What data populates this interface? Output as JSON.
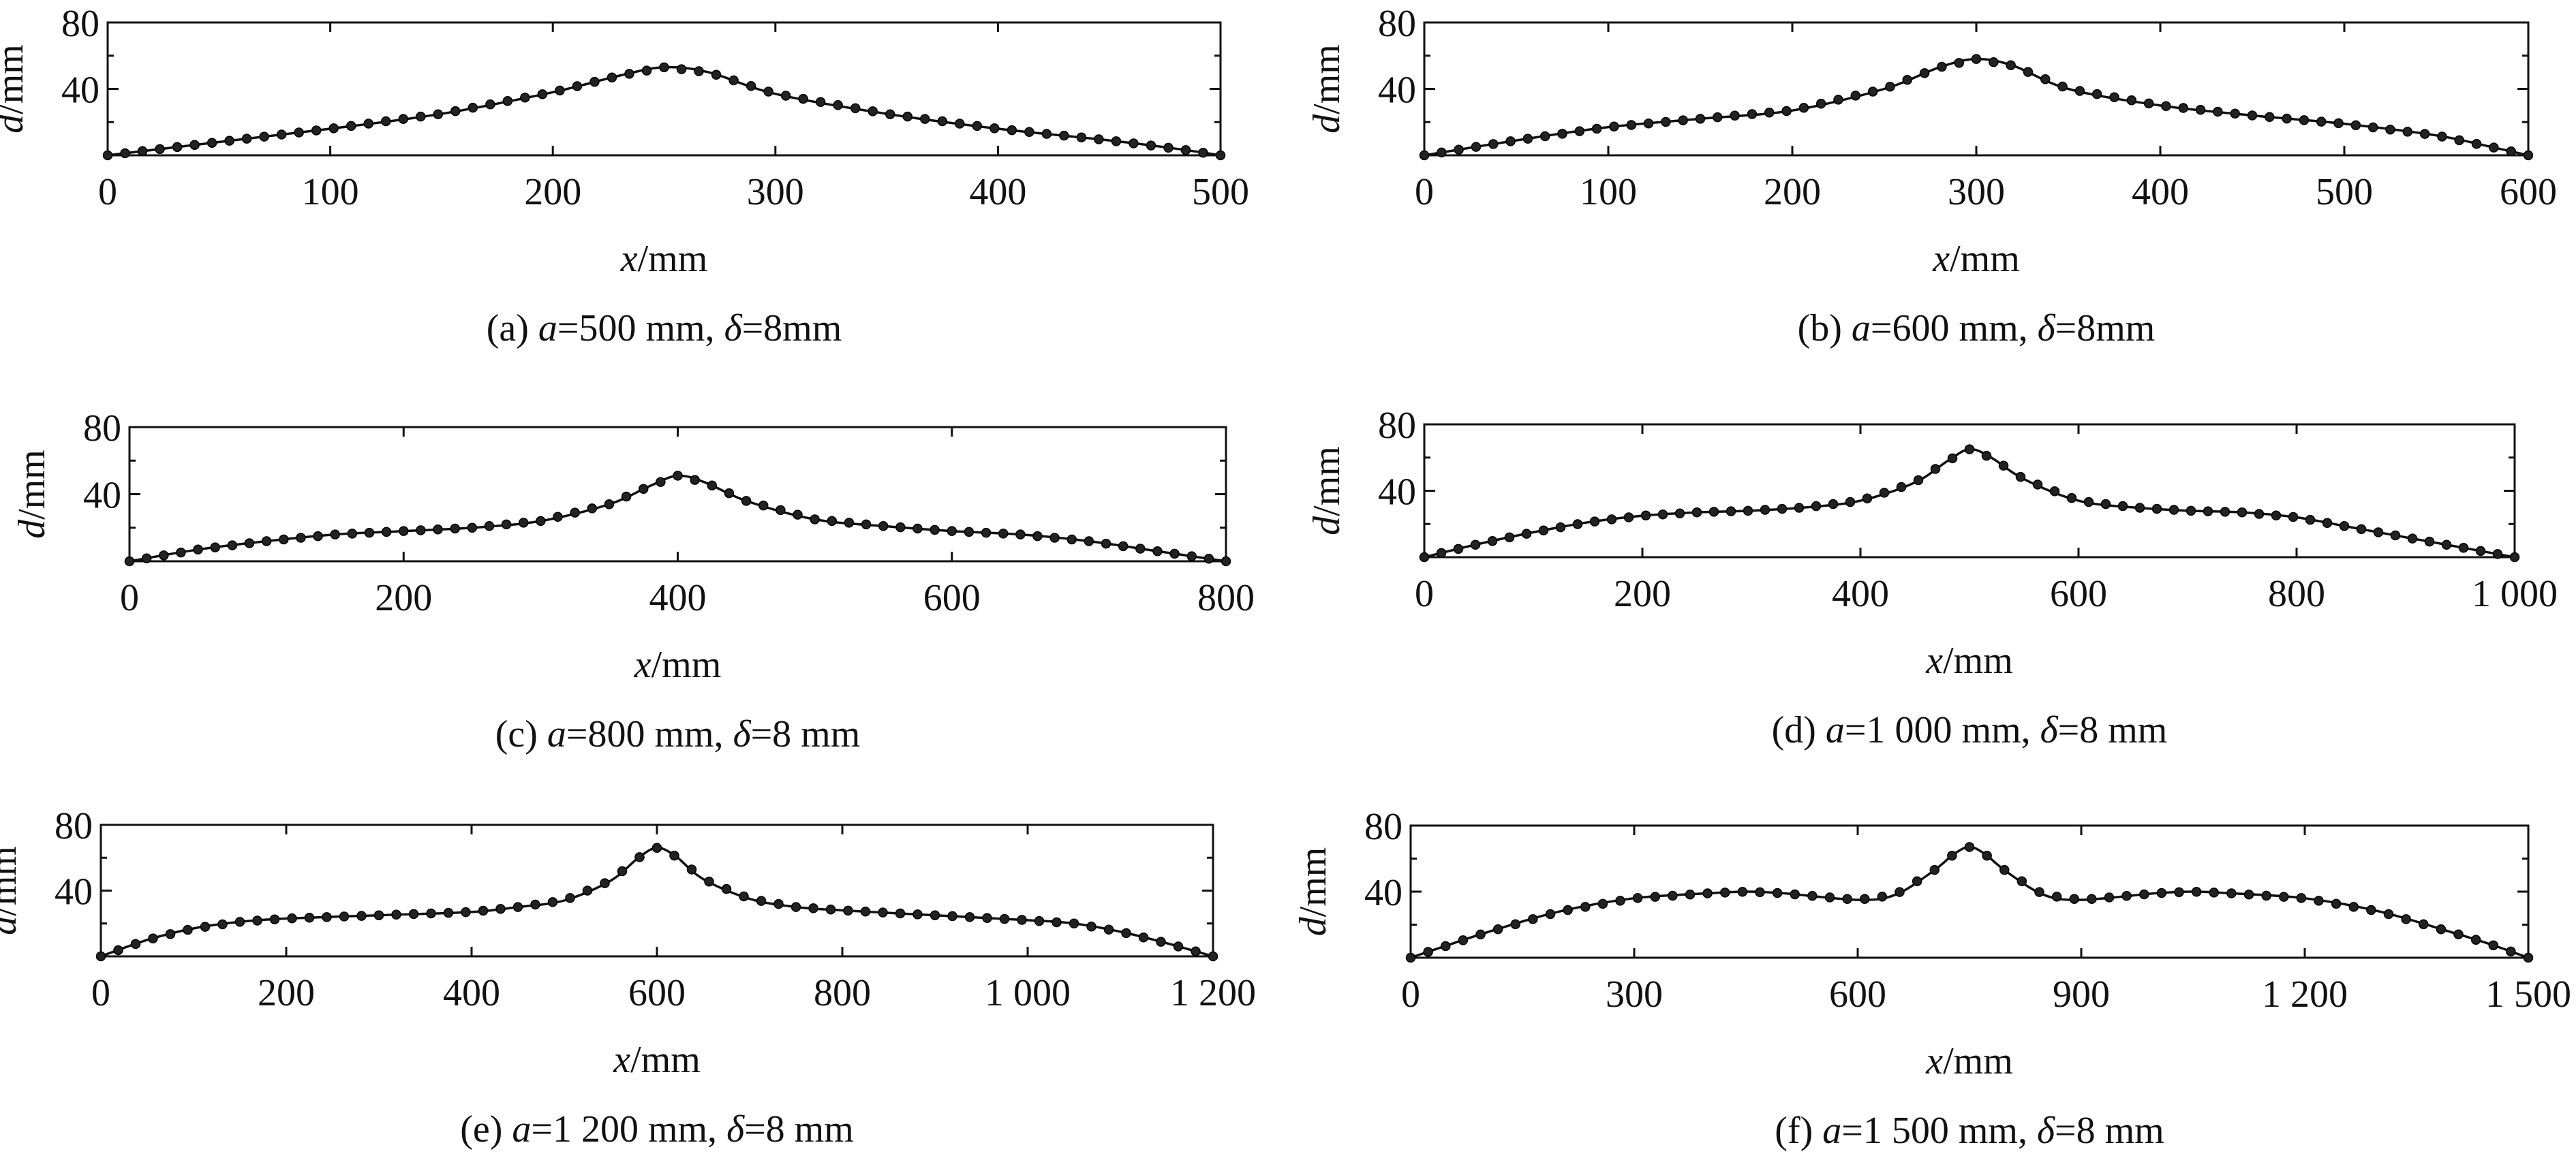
{
  "chart_data": [
    {
      "type": "line",
      "caption": {
        "prefix": "(a) ",
        "a_sym": "a",
        "a_text": "=500 mm, ",
        "d_sym": "δ",
        "d_text": "=8mm"
      },
      "xlabel": {
        "sym": "x",
        "unit": "/mm"
      },
      "ylabel": {
        "sym": "d",
        "unit": "/mm"
      },
      "xlim": [
        0,
        500
      ],
      "ylim": [
        0,
        80
      ],
      "xticks": [
        0,
        100,
        200,
        300,
        400,
        500
      ],
      "xtick_labels": [
        "0",
        "100",
        "200",
        "300",
        "400",
        "500"
      ],
      "yticks": [
        40,
        80
      ],
      "ytick_labels": [
        "40",
        "80"
      ],
      "series": [
        {
          "x": [
            0,
            50,
            100,
            150,
            200,
            230,
            250,
            270,
            300,
            350,
            400,
            450,
            480,
            500
          ],
          "y": [
            0,
            8,
            16,
            25,
            38,
            48,
            53,
            50,
            37,
            25,
            16,
            9,
            4,
            0
          ]
        }
      ]
    },
    {
      "type": "line",
      "caption": {
        "prefix": "(b) ",
        "a_sym": "a",
        "a_text": "=600 mm, ",
        "d_sym": "δ",
        "d_text": "=8mm"
      },
      "xlabel": {
        "sym": "x",
        "unit": "/mm"
      },
      "ylabel": {
        "sym": "d",
        "unit": "/mm"
      },
      "xlim": [
        0,
        600
      ],
      "ylim": [
        0,
        80
      ],
      "xticks": [
        0,
        100,
        200,
        300,
        400,
        500,
        600
      ],
      "xtick_labels": [
        "0",
        "100",
        "200",
        "300",
        "400",
        "500",
        "600"
      ],
      "yticks": [
        40,
        80
      ],
      "ytick_labels": [
        "40",
        "80"
      ],
      "series": [
        {
          "x": [
            0,
            50,
            100,
            150,
            200,
            250,
            280,
            300,
            320,
            350,
            400,
            450,
            500,
            550,
            580,
            600
          ],
          "y": [
            0,
            9,
            17,
            22,
            27,
            40,
            53,
            58,
            54,
            40,
            30,
            24,
            19,
            12,
            5,
            0
          ]
        }
      ]
    },
    {
      "type": "line",
      "caption": {
        "prefix": "(c) ",
        "a_sym": "a",
        "a_text": "=800 mm, ",
        "d_sym": "δ",
        "d_text": "=8 mm"
      },
      "xlabel": {
        "sym": "x",
        "unit": "/mm"
      },
      "ylabel": {
        "sym": "d",
        "unit": "/mm"
      },
      "xlim": [
        0,
        800
      ],
      "ylim": [
        0,
        80
      ],
      "xticks": [
        0,
        200,
        400,
        600,
        800
      ],
      "xtick_labels": [
        "0",
        "200",
        "400",
        "600",
        "800"
      ],
      "yticks": [
        40,
        80
      ],
      "ytick_labels": [
        "40",
        "80"
      ],
      "series": [
        {
          "x": [
            0,
            50,
            100,
            150,
            200,
            250,
            300,
            350,
            380,
            400,
            420,
            450,
            500,
            550,
            600,
            650,
            700,
            750,
            800
          ],
          "y": [
            0,
            7,
            12,
            16,
            18,
            20,
            24,
            34,
            45,
            51,
            47,
            36,
            25,
            21,
            18,
            16,
            12,
            6,
            0
          ]
        }
      ]
    },
    {
      "type": "line",
      "caption": {
        "prefix": "(d) ",
        "a_sym": "a",
        "a_text": "=1 000 mm, ",
        "d_sym": "δ",
        "d_text": "=8 mm"
      },
      "xlabel": {
        "sym": "x",
        "unit": "/mm"
      },
      "ylabel": {
        "sym": "d",
        "unit": "/mm"
      },
      "xlim": [
        0,
        1000
      ],
      "ylim": [
        0,
        80
      ],
      "xticks": [
        0,
        200,
        400,
        600,
        800,
        1000
      ],
      "xtick_labels": [
        "0",
        "200",
        "400",
        "600",
        "800",
        "1 000"
      ],
      "yticks": [
        40,
        80
      ],
      "ytick_labels": [
        "40",
        "80"
      ],
      "series": [
        {
          "x": [
            0,
            50,
            100,
            150,
            200,
            250,
            300,
            350,
            400,
            450,
            480,
            500,
            520,
            550,
            600,
            650,
            700,
            750,
            800,
            850,
            900,
            950,
            1000
          ],
          "y": [
            0,
            8,
            15,
            21,
            25,
            27,
            28,
            30,
            34,
            45,
            58,
            65,
            60,
            47,
            34,
            30,
            28,
            27,
            24,
            18,
            12,
            6,
            0
          ]
        }
      ]
    },
    {
      "type": "line",
      "caption": {
        "prefix": "(e) ",
        "a_sym": "a",
        "a_text": "=1 200 mm, ",
        "d_sym": "δ",
        "d_text": "=8 mm"
      },
      "xlabel": {
        "sym": "x",
        "unit": "/mm"
      },
      "ylabel": {
        "sym": "d",
        "unit": "/mm"
      },
      "xlim": [
        0,
        1200
      ],
      "ylim": [
        0,
        80
      ],
      "xticks": [
        0,
        200,
        400,
        600,
        800,
        1000,
        1200
      ],
      "xtick_labels": [
        "0",
        "200",
        "400",
        "600",
        "800",
        "1 000",
        "1 200"
      ],
      "yticks": [
        40,
        80
      ],
      "ytick_labels": [
        "40",
        "80"
      ],
      "series": [
        {
          "x": [
            0,
            50,
            100,
            150,
            200,
            300,
            400,
            450,
            500,
            550,
            580,
            600,
            620,
            650,
            700,
            750,
            800,
            900,
            1000,
            1050,
            1100,
            1150,
            1200
          ],
          "y": [
            0,
            10,
            17,
            21,
            23,
            25,
            27,
            30,
            34,
            46,
            60,
            66,
            61,
            47,
            35,
            30,
            28,
            25,
            22,
            20,
            15,
            8,
            0
          ]
        }
      ]
    },
    {
      "type": "line",
      "caption": {
        "prefix": "(f) ",
        "a_sym": "a",
        "a_text": "=1 500 mm, ",
        "d_sym": "δ",
        "d_text": "=8 mm"
      },
      "xlabel": {
        "sym": "x",
        "unit": "/mm"
      },
      "ylabel": {
        "sym": "d",
        "unit": "/mm"
      },
      "xlim": [
        0,
        1500
      ],
      "ylim": [
        0,
        80
      ],
      "xticks": [
        0,
        300,
        600,
        900,
        1200,
        1500
      ],
      "xtick_labels": [
        "0",
        "300",
        "600",
        "900",
        "1 200",
        "1 500"
      ],
      "yticks": [
        40,
        80
      ],
      "ytick_labels": [
        "40",
        "80"
      ],
      "series": [
        {
          "x": [
            0,
            100,
            200,
            300,
            400,
            450,
            500,
            600,
            650,
            700,
            730,
            750,
            770,
            800,
            850,
            900,
            1000,
            1050,
            1100,
            1200,
            1300,
            1400,
            1450,
            1500
          ],
          "y": [
            0,
            15,
            28,
            36,
            39,
            40,
            39,
            35,
            38,
            52,
            63,
            67,
            63,
            52,
            38,
            35,
            39,
            40,
            39,
            36,
            28,
            15,
            8,
            0
          ]
        }
      ]
    }
  ]
}
